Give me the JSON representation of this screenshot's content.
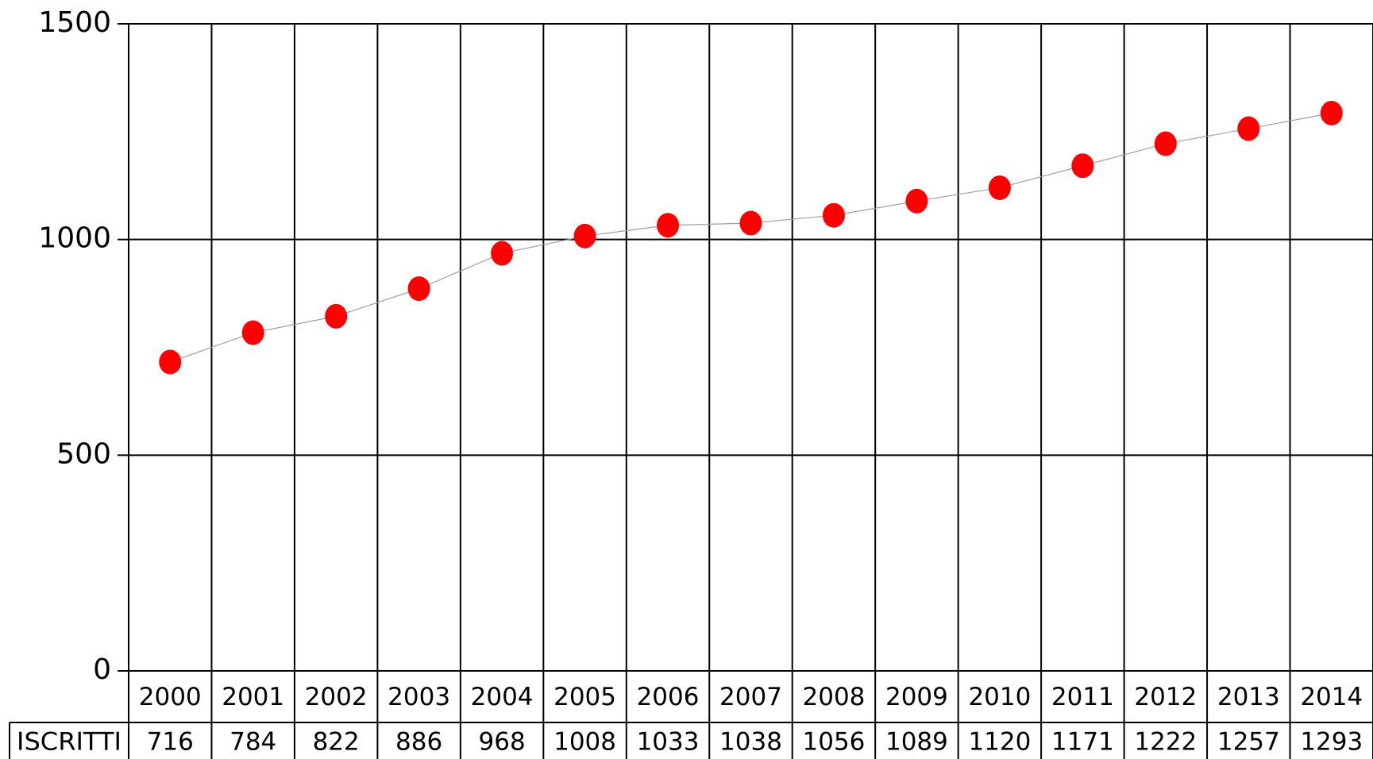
{
  "chart_data": {
    "type": "line",
    "categories": [
      "2000",
      "2001",
      "2002",
      "2003",
      "2004",
      "2005",
      "2006",
      "2007",
      "2008",
      "2009",
      "2010",
      "2011",
      "2012",
      "2013",
      "2014"
    ],
    "series": [
      {
        "name": "ISCRITTI",
        "color": "#ff0000",
        "values": [
          716,
          784,
          822,
          886,
          968,
          1008,
          1033,
          1038,
          1056,
          1089,
          1120,
          1171,
          1222,
          1257,
          1293
        ]
      }
    ],
    "ylim": [
      0,
      1500
    ],
    "yticks": [
      0,
      500,
      1000,
      1500
    ],
    "grid": true,
    "line_color": "#a0a0a0"
  }
}
